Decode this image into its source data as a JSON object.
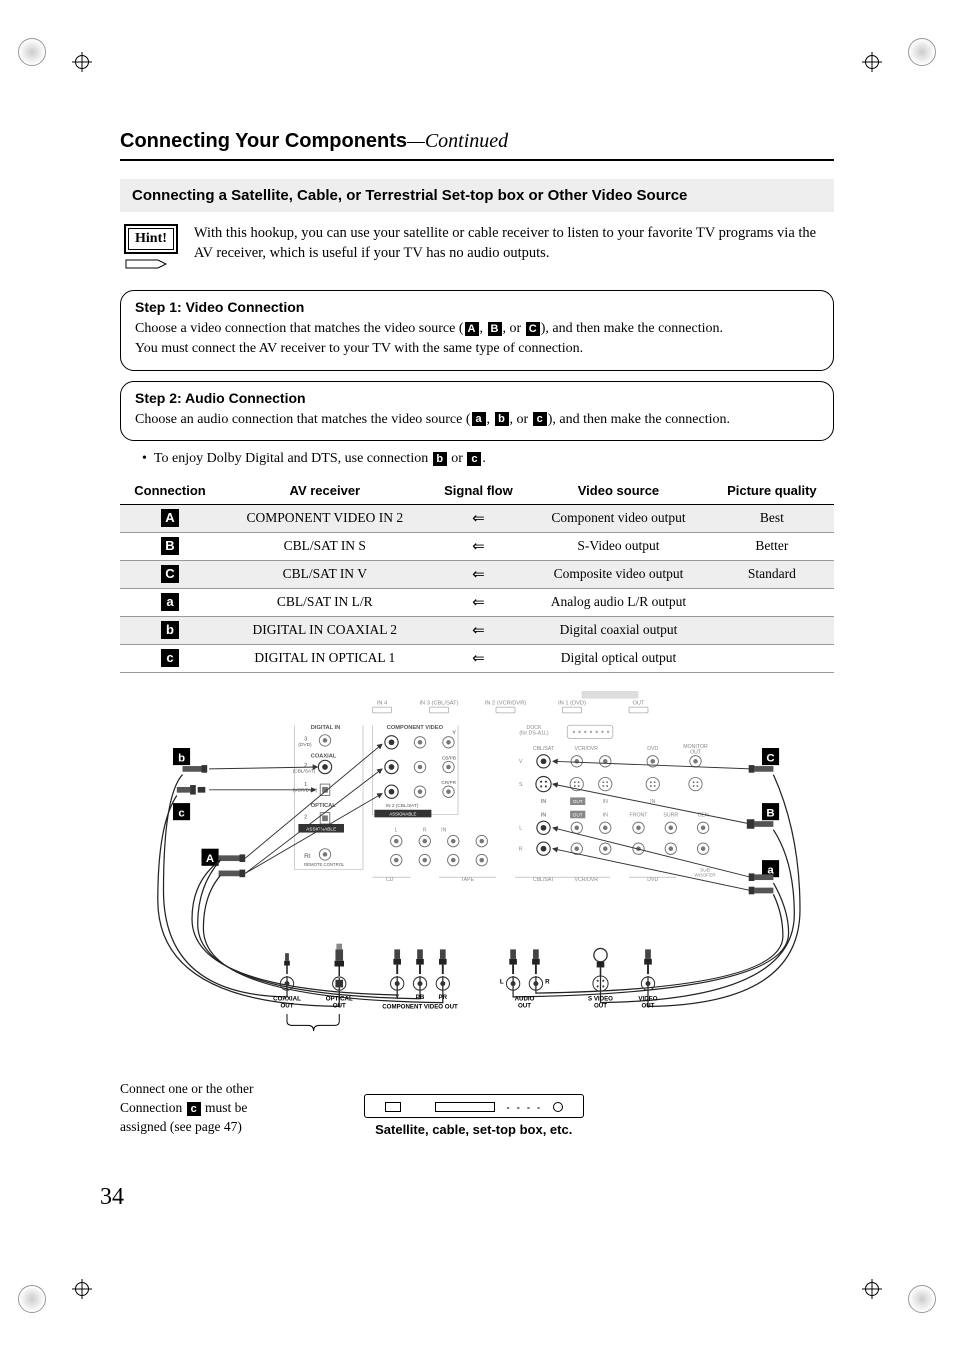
{
  "page_number": "34",
  "header": {
    "title": "Connecting Your Components",
    "continued": "—Continued"
  },
  "subheader": "Connecting a Satellite, Cable, or Terrestrial Set-top box or Other Video Source",
  "hint": {
    "label": "Hint!",
    "text": "With this hookup, you can use your satellite or cable receiver to listen to your favorite TV programs via the AV receiver, which is useful if your TV has no audio outputs."
  },
  "step1": {
    "title": "Step 1: Video Connection",
    "line1_pre": "Choose a video connection that matches the video source (",
    "badges": [
      "A",
      "B",
      "C"
    ],
    "line1_post": "), and then make the connection.",
    "line2": "You must connect the AV receiver to your TV with the same type of connection."
  },
  "step2": {
    "title": "Step 2: Audio Connection",
    "line1_pre": "Choose an audio connection that matches the video source (",
    "badges": [
      "a",
      "b",
      "c"
    ],
    "line1_post": "), and then make the connection."
  },
  "bullet": {
    "pre": "To enjoy Dolby Digital and DTS, use connection ",
    "badges": [
      "b",
      "c"
    ],
    "post": "."
  },
  "table": {
    "headers": [
      "Connection",
      "AV receiver",
      "Signal flow",
      "Video source",
      "Picture quality"
    ],
    "rows": [
      {
        "badge": "A",
        "rec": "COMPONENT VIDEO IN 2",
        "flow": "⇐",
        "src": "Component video output",
        "qual": "Best",
        "stripe": true
      },
      {
        "badge": "B",
        "rec": "CBL/SAT IN S",
        "flow": "⇐",
        "src": "S-Video output",
        "qual": "Better",
        "stripe": false
      },
      {
        "badge": "C",
        "rec": "CBL/SAT IN V",
        "flow": "⇐",
        "src": "Composite video output",
        "qual": "Standard",
        "stripe": true
      },
      {
        "badge": "a",
        "rec": "CBL/SAT IN L/R",
        "flow": "⇐",
        "src": "Analog audio L/R output",
        "qual": "",
        "stripe": false
      },
      {
        "badge": "b",
        "rec": "DIGITAL IN COAXIAL 2",
        "flow": "⇐",
        "src": "Digital coaxial output",
        "qual": "",
        "stripe": true
      },
      {
        "badge": "c",
        "rec": "DIGITAL IN OPTICAL 1",
        "flow": "⇐",
        "src": "Digital optical output",
        "qual": "",
        "stripe": false
      }
    ]
  },
  "diagram": {
    "labels": {
      "digital_in": "DIGITAL IN",
      "component_video": "COMPONENT VIDEO",
      "coaxial": "COAXIAL",
      "optical": "OPTICAL",
      "assignable": "ASSIGNABLE",
      "dvd_label": "(DVD)",
      "cbl_label": "(CBL/SAT)",
      "vcr_label": "(VCR/DVR)",
      "in1": "IN 1",
      "in2": "IN 2",
      "in3": "IN 3",
      "in4": "IN 4",
      "out": "OUT",
      "hdmi": "HDMI",
      "dock": "DOCK\n(for DS-A1L)",
      "monitor_out": "MONITOR\nOUT",
      "cblsat": "CBL/SAT",
      "vcrdvr": "VCR/DVR",
      "dvd": "DVD",
      "cd": "CD",
      "tape": "TAPE",
      "front": "FRONT",
      "surr": "SURR",
      "cen": "CEN",
      "subwoofer": "SUB WOOFER",
      "ri_remote": "RI",
      "remote_ctrl": "REMOTE CONTROL",
      "y": "Y",
      "pb": "CB/PB",
      "pr": "CR/PR",
      "v": "V",
      "s": "S",
      "l": "L",
      "r": "R",
      "in": "IN",
      "num1": "1",
      "num2": "2",
      "num3": "3"
    },
    "out_labels": {
      "coaxial_out": "COAXIAL\nOUT",
      "optical_out": "OPTICAL\nOUT",
      "component_out": "COMPONENT VIDEO OUT",
      "ypbpr": [
        "Y",
        "PB",
        "PR"
      ],
      "audio_out": "AUDIO\nOUT",
      "audio_lr": [
        "L",
        "R"
      ],
      "svideo_out": "S VIDEO\nOUT",
      "video_out": "VIDEO\nOUT"
    },
    "badges": {
      "A": "A",
      "B": "B",
      "C": "C",
      "a": "a",
      "b": "b",
      "c": "c"
    },
    "note_line1": "Connect one or the other",
    "note_line2_pre": "Connection ",
    "note_line2_badge": "c",
    "note_line2_post": " must be",
    "note_line3": "assigned (see page 47)",
    "caption": "Satellite, cable, set-top box, etc."
  },
  "colors": {
    "text": "#000000",
    "bg": "#ffffff",
    "stripe": "#eeeeee",
    "diagram_line": "#555555",
    "diagram_light": "#aaaaaa"
  }
}
